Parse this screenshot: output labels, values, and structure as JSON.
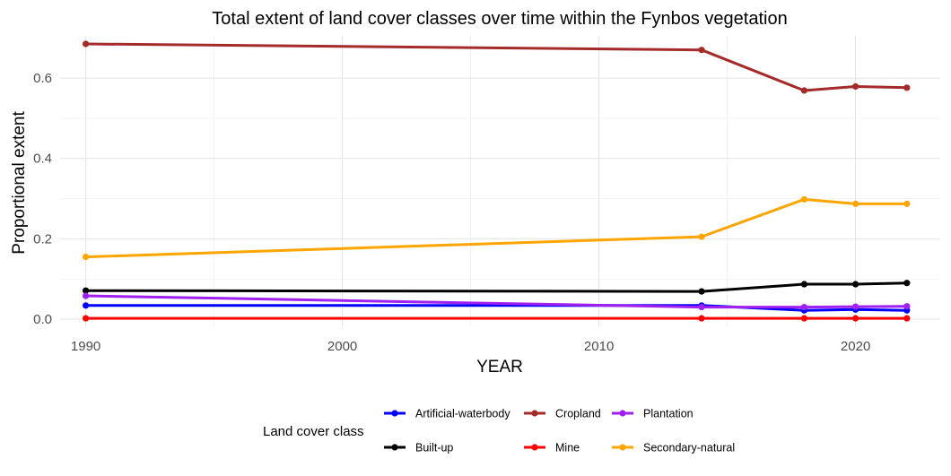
{
  "chart_data": {
    "type": "line",
    "title": "Total extent of land cover classes over time within the Fynbos vegetation",
    "xlabel": "YEAR",
    "ylabel": "Proportional extent",
    "xlim": [
      1989,
      2023.3
    ],
    "ylim": [
      -0.02,
      0.705
    ],
    "x_ticks": [
      1990,
      2000,
      2010,
      2020
    ],
    "y_ticks": [
      0.0,
      0.2,
      0.4,
      0.6
    ],
    "y_tick_labels": [
      "0.0",
      "0.2",
      "0.4",
      "0.6"
    ],
    "grid": true,
    "legend_title": "Land cover class",
    "legend_position": "bottom",
    "x": [
      1990,
      2014,
      2018,
      2020,
      2022
    ],
    "series": [
      {
        "name": "Artificial-waterbody",
        "color": "#0000ff",
        "values": [
          0.034,
          0.034,
          0.022,
          0.024,
          0.022
        ]
      },
      {
        "name": "Built-up",
        "color": "#000000",
        "values": [
          0.071,
          0.069,
          0.087,
          0.087,
          0.09
        ]
      },
      {
        "name": "Cropland",
        "color": "#a52a2a",
        "values": [
          0.685,
          0.67,
          0.569,
          0.579,
          0.576
        ]
      },
      {
        "name": "Mine",
        "color": "#ff0000",
        "values": [
          0.002,
          0.002,
          0.002,
          0.002,
          0.002
        ]
      },
      {
        "name": "Plantation",
        "color": "#a020f0",
        "values": [
          0.058,
          0.03,
          0.03,
          0.031,
          0.032
        ]
      },
      {
        "name": "Secondary-natural",
        "color": "#ffa500",
        "values": [
          0.155,
          0.205,
          0.298,
          0.287,
          0.287
        ]
      }
    ]
  }
}
